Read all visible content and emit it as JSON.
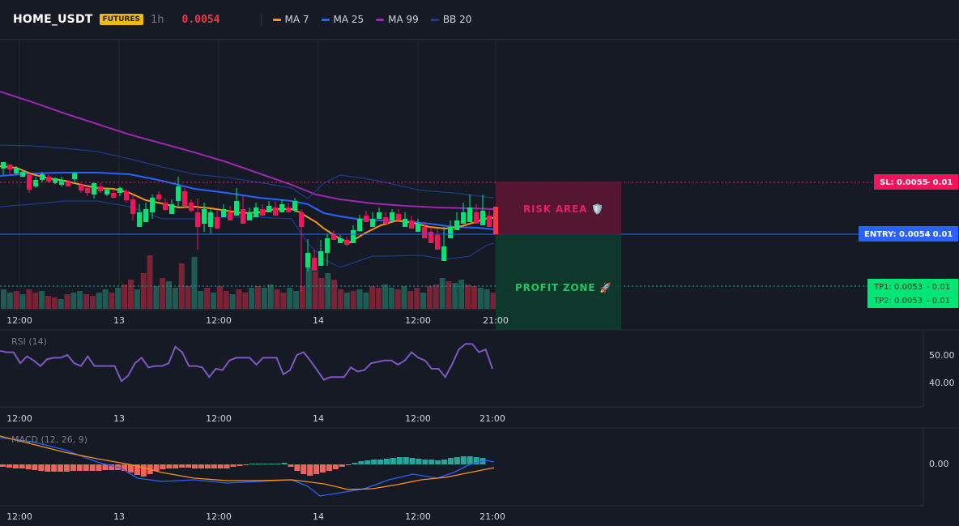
{
  "header": {
    "symbol": "HOME_USDT",
    "badge": "FUTURES",
    "interval": "1h",
    "price": "0.0054",
    "legend": [
      {
        "label": "MA 7",
        "color": "#f7931a"
      },
      {
        "label": "MA 25",
        "color": "#2962ff"
      },
      {
        "label": "MA 99",
        "color": "#9c27b0"
      },
      {
        "label": "BB 20",
        "color": "#1e3a8a"
      }
    ]
  },
  "levels": {
    "sl": "SL: 0.0055",
    "sl_size": "- 0.01",
    "entry": "ENTRY: 0.0054",
    "entry_size": "- 0.01",
    "tp1": "TP1: 0.0053",
    "tp1_size": "- 0.01",
    "tp2": "TP2: 0.0053",
    "tp2_size": "- 0.01"
  },
  "zones": {
    "risk": "RISK AREA 🛡️",
    "profit": "PROFIT ZONE 🚀"
  },
  "time_labels": [
    "12:00",
    "13",
    "12:00",
    "14",
    "12:00",
    "21:00"
  ],
  "rsi": {
    "title": "RSI (14)",
    "ticks": [
      "50.00",
      "40.00"
    ],
    "values": [
      51.5,
      51,
      51,
      47,
      49.5,
      48,
      46,
      48.5,
      49,
      49,
      50,
      47,
      46,
      49.5,
      46,
      46,
      46,
      46,
      40.5,
      42.5,
      47,
      49,
      45.5,
      46,
      46,
      47,
      53,
      51,
      46,
      46,
      45.5,
      42,
      45,
      44.5,
      48,
      49,
      49,
      49,
      46.5,
      49,
      49,
      49,
      43,
      44.5,
      50,
      51,
      48,
      44.5,
      41,
      42,
      42,
      42,
      45.5,
      44,
      44.5,
      47,
      47.5,
      48,
      48,
      46.5,
      48,
      51,
      49,
      48,
      45,
      45,
      42,
      46.5,
      52,
      54,
      54,
      51,
      52,
      45
    ]
  },
  "macd": {
    "title": "MACD (12, 26, 9)",
    "ticks": [
      "0.00"
    ]
  },
  "chart_data": {
    "type": "candlestick",
    "symbol": "HOME_USDT",
    "interval": "1h",
    "price_levels": {
      "sl": 0.0055,
      "entry": 0.0054,
      "tp1": 0.0053,
      "tp2": 0.0053
    },
    "rsi_range": [
      30,
      60
    ],
    "rsi_ticks": [
      50,
      40
    ],
    "macd_ticks": [
      0
    ]
  }
}
